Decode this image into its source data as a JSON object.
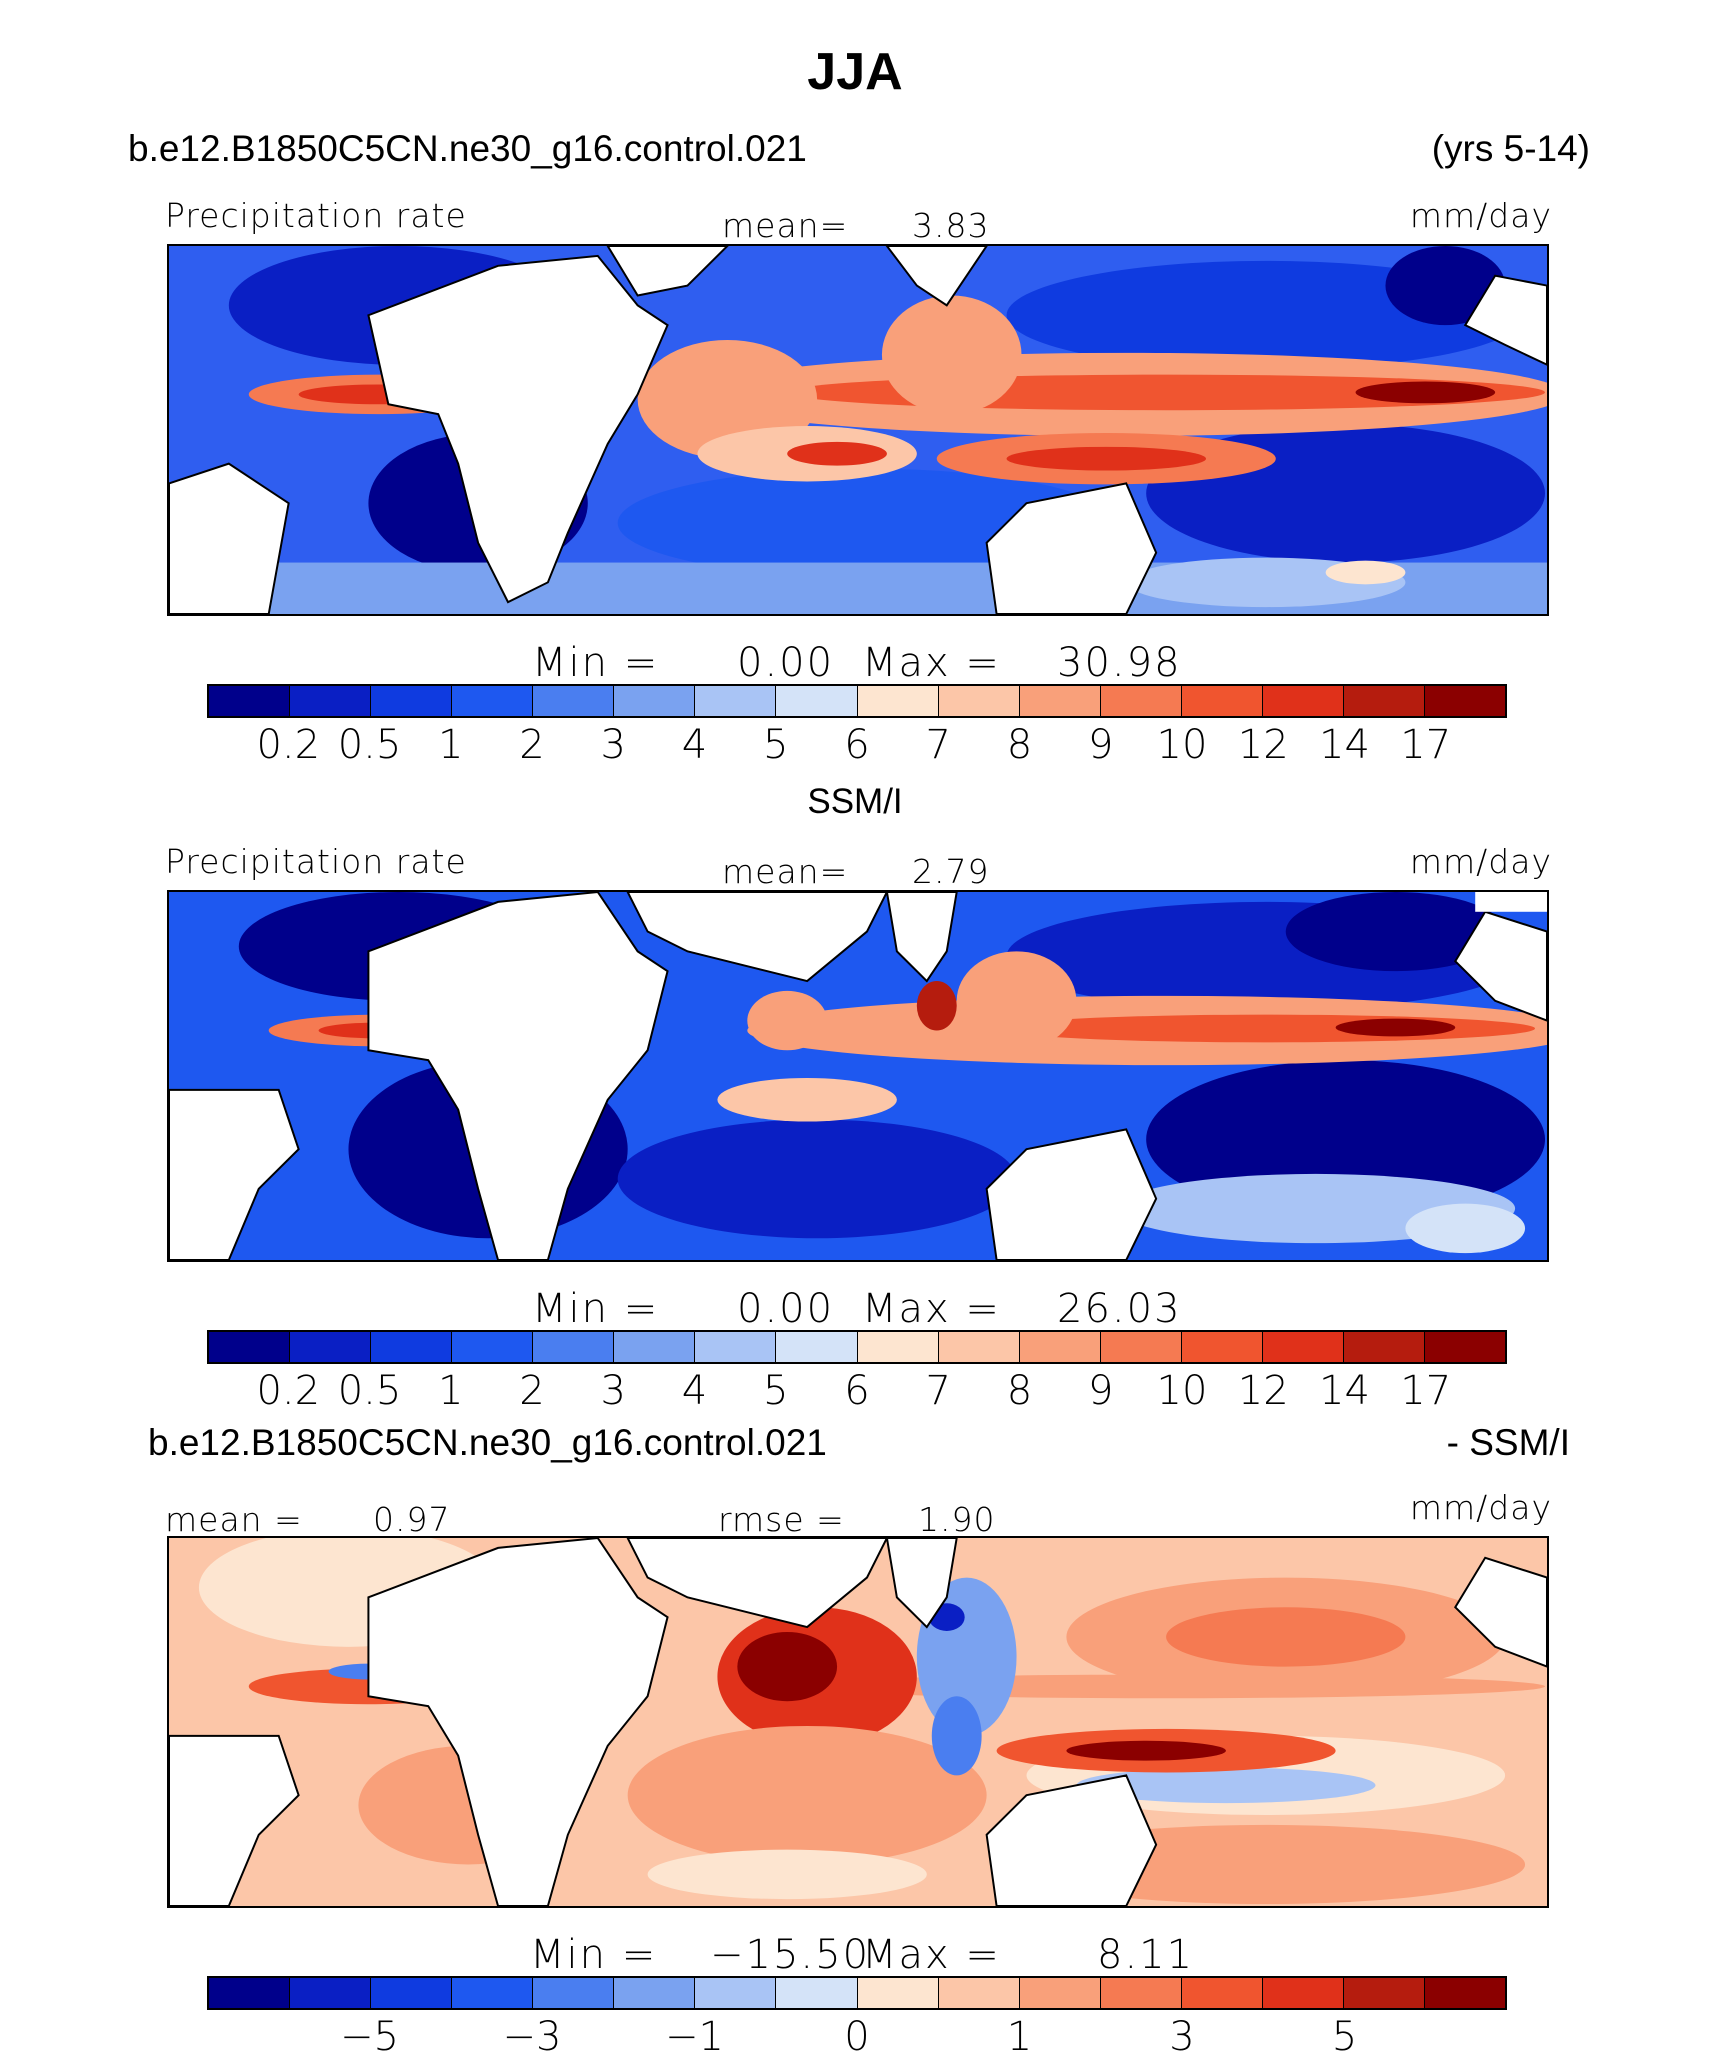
{
  "title": "JJA",
  "header": {
    "case_name": "b.e12.B1850C5CN.ne30_g16.control.021",
    "years": "(yrs 5-14)"
  },
  "panels": [
    {
      "variable": "Precipitation rate",
      "stat_left": "mean=",
      "stat_left_value": "3.83",
      "units": "mm/day",
      "min_label": "Min  =",
      "min_value": "0.00",
      "max_label": "Max  =",
      "max_value": "30.98"
    },
    {
      "subtitle": "SSM/I",
      "variable": "Precipitation rate",
      "stat_left": "mean=",
      "stat_left_value": "2.79",
      "units": "mm/day",
      "min_label": "Min  =",
      "min_value": "0.00",
      "max_label": "Max  =",
      "max_value": "26.03"
    },
    {
      "case_name": "b.e12.B1850C5CN.ne30_g16.control.021",
      "case_suffix": "- SSM/I",
      "stat_left": "mean  =",
      "stat_left_value": "0.97",
      "stat_mid": "rmse  =",
      "stat_mid_value": "1.90",
      "units": "mm/day",
      "min_label": "Min  =",
      "min_value": "−15.50",
      "max_label": "Max  =",
      "max_value": "8.11"
    }
  ],
  "colorbars": {
    "colors": [
      "#00008b",
      "#0a1fc4",
      "#0f3be0",
      "#1e58f0",
      "#4a7ef0",
      "#7aa2f0",
      "#a9c4f5",
      "#d4e3f8",
      "#fde5d0",
      "#fcc6a8",
      "#f9a07a",
      "#f57a52",
      "#f0552f",
      "#e0311a",
      "#b51c0e",
      "#8b0000"
    ],
    "absolute_ticks": [
      "0.2",
      "0.5",
      "1",
      "2",
      "3",
      "4",
      "5",
      "6",
      "7",
      "8",
      "9",
      "10",
      "12",
      "14",
      "17"
    ],
    "difference_ticks": [
      "−5",
      "−3",
      "−1",
      "0",
      "1",
      "3",
      "5"
    ]
  }
}
